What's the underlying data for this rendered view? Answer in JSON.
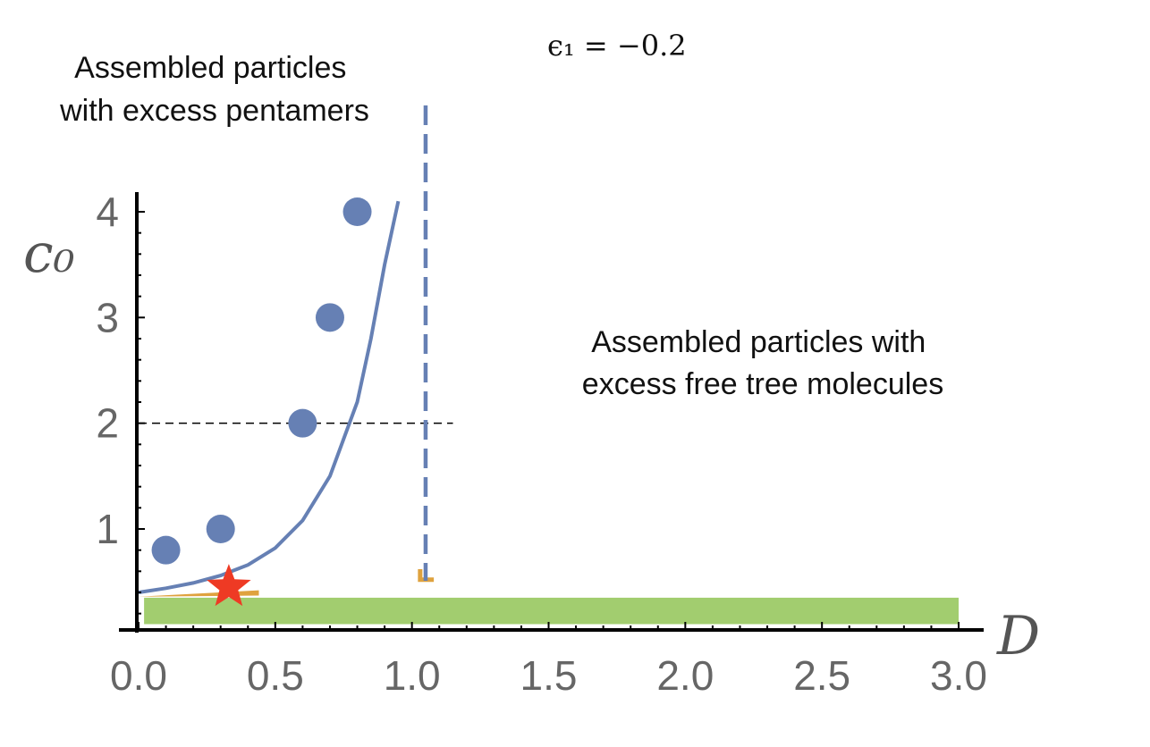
{
  "chart_data": {
    "type": "scatter",
    "title": "",
    "parameter_label": "ϵ₁ = −0.2",
    "xlabel": "D",
    "ylabel": "c₀",
    "xlim": [
      0,
      3.0
    ],
    "ylim": [
      0.05,
      4.1
    ],
    "x_ticks": [
      "0.0",
      "0.5",
      "1.0",
      "1.5",
      "2.0",
      "2.5",
      "3.0"
    ],
    "y_ticks": [
      "1",
      "2",
      "3",
      "4"
    ],
    "x_tick_values": [
      0,
      0.5,
      1.0,
      1.5,
      2.0,
      2.5,
      3.0
    ],
    "y_tick_values": [
      1,
      2,
      3,
      4
    ],
    "grid": false,
    "series": [
      {
        "values": [
          {
            "x": 0.1,
            "y": 0.8
          },
          {
            "x": 0.3,
            "y": 1.0
          },
          {
            "x": 0.6,
            "y": 2.0
          },
          {
            "x": 0.7,
            "y": 3.0
          },
          {
            "x": 0.8,
            "y": 4.0
          }
        ]
      }
    ],
    "boundary_curve": [
      {
        "x": 0.0,
        "y": 0.4
      },
      {
        "x": 0.1,
        "y": 0.44
      },
      {
        "x": 0.2,
        "y": 0.49
      },
      {
        "x": 0.3,
        "y": 0.56
      },
      {
        "x": 0.4,
        "y": 0.66
      },
      {
        "x": 0.5,
        "y": 0.82
      },
      {
        "x": 0.6,
        "y": 1.08
      },
      {
        "x": 0.7,
        "y": 1.5
      },
      {
        "x": 0.8,
        "y": 2.2
      },
      {
        "x": 0.85,
        "y": 2.8
      },
      {
        "x": 0.9,
        "y": 3.5
      },
      {
        "x": 0.95,
        "y": 4.1
      }
    ],
    "vertical_dashed_line": {
      "x": 1.05
    },
    "horizontal_dashed_line": {
      "y": 2.0,
      "x_range": [
        0,
        1.15
      ]
    },
    "marker_star": {
      "x": 0.33,
      "y": 0.45
    },
    "green_band": {
      "x_range": [
        0.02,
        3.0
      ],
      "y_range": [
        0.1,
        0.35
      ]
    },
    "annotations": [
      {
        "lines": [
          "Assembled particles",
          "with excess pentamers"
        ]
      },
      {
        "lines": [
          "Assembled particles with",
          "excess free tree molecules"
        ]
      }
    ],
    "colors": {
      "points": "#6680b4",
      "curve": "#6680b4",
      "dashed_vertical": "#6680b4",
      "star": "#ee3a24",
      "band": "#a2cd6f",
      "orange": "#dfa23e",
      "axis": "#000000",
      "tick_label": "#666666"
    }
  }
}
